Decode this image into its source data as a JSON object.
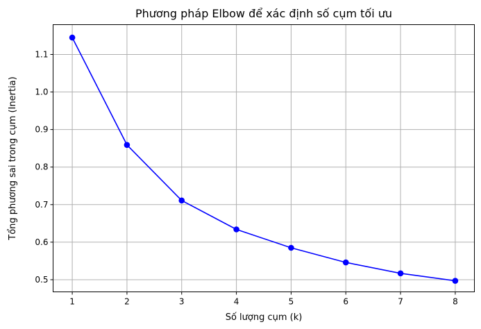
{
  "chart_data": {
    "type": "line",
    "title": "Phương pháp Elbow để xác định số cụm tối ưu",
    "xlabel": "Số lượng cụm (k)",
    "ylabel": "Tổng phương sai trong cụm (Inertia)",
    "x": [
      1,
      2,
      3,
      4,
      5,
      6,
      7,
      8
    ],
    "series": [
      {
        "values": [
          1.145,
          0.859,
          0.711,
          0.634,
          0.585,
          0.546,
          0.517,
          0.497
        ],
        "color": "#0000ff",
        "marker": "circle"
      }
    ],
    "xticks": [
      "1",
      "2",
      "3",
      "4",
      "5",
      "6",
      "7",
      "8"
    ],
    "yticks": [
      "0.5",
      "0.6",
      "0.7",
      "0.8",
      "0.9",
      "1.0",
      "1.1"
    ],
    "xlim": [
      0.65,
      8.35
    ],
    "ylim": [
      0.4676,
      1.1794
    ],
    "grid": true
  }
}
